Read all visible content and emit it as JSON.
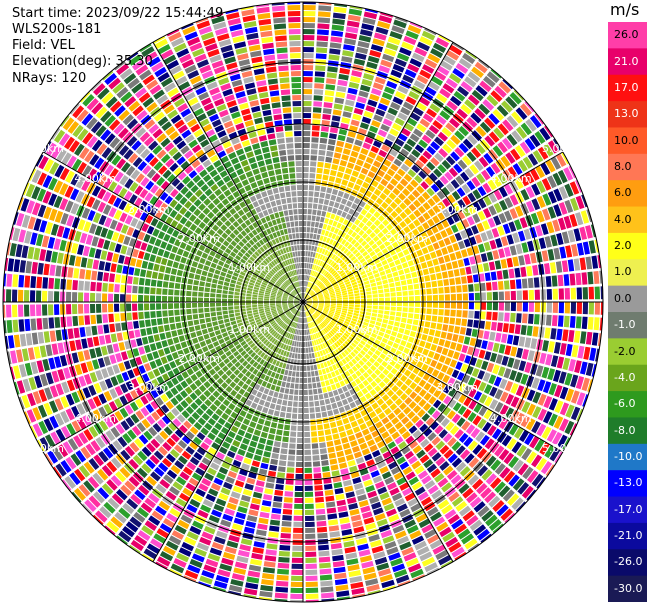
{
  "info": {
    "start_time": "Start time: 2023/09/22 15:44:49",
    "instrument": "WLS200s-181",
    "field": "Field: VEL",
    "elevation": "Elevation(deg): 35.30",
    "nrays": "NRays: 120"
  },
  "colorbar": {
    "unit": "m/s",
    "ticks": [
      "26.0",
      "21.0",
      "17.0",
      "13.0",
      "10.0",
      "8.0",
      "6.0",
      "4.0",
      "2.0",
      "1.0",
      "0.0",
      "-1.0",
      "-2.0",
      "-4.0",
      "-6.0",
      "-8.0",
      "-10.0",
      "-13.0",
      "-17.0",
      "-21.0",
      "-26.0",
      "-30.0"
    ],
    "colors": [
      "#ff3ea8",
      "#e8006a",
      "#ff1010",
      "#ee3318",
      "#ff5a28",
      "#ff7755",
      "#ff9d10",
      "#ffc21a",
      "#ffff18",
      "#eef050",
      "#9a9a9a",
      "#6f7c6f",
      "#9acd32",
      "#6aa51c",
      "#2e9a1e",
      "#1f7d2a",
      "#1f78c8",
      "#0000ff",
      "#1a12cc",
      "#0b0a9e",
      "#0a0a6a",
      "#1a1a55"
    ]
  },
  "range_labels": [
    "1.00km",
    "2.00km",
    "3.00km",
    "4.00km",
    "5.00km"
  ],
  "palette_noise": [
    "#ff2fa0",
    "#e8006a",
    "#ff1010",
    "#ff7a5a",
    "#ffff20",
    "#ffb000",
    "#2ca02c",
    "#1f5f2f",
    "#0000ff",
    "#12126f",
    "#7a7a7a",
    "#b0b0b0",
    "#9acd32",
    "#00007a",
    "#ff4fd0"
  ]
}
